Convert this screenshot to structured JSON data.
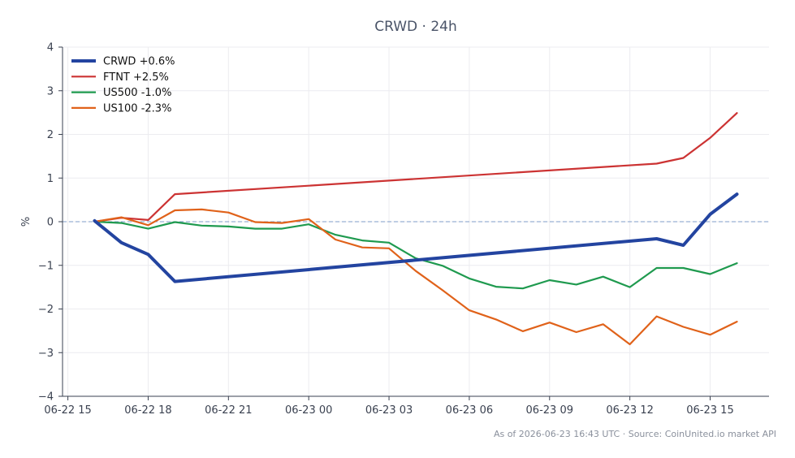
{
  "chart_data": {
    "type": "line",
    "title": "CRWD · 24h",
    "xlabel": "",
    "ylabel": "%",
    "ylim": [
      -4,
      4
    ],
    "y_ticks": [
      "4",
      "3",
      "2",
      "1",
      "0",
      "−1",
      "−2",
      "−3",
      "−4"
    ],
    "y_tick_values": [
      4,
      3,
      2,
      1,
      0,
      -1,
      -2,
      -3,
      -4
    ],
    "x_ticks": [
      "06-22 15",
      "06-22 18",
      "06-22 21",
      "06-23 00",
      "06-23 03",
      "06-23 06",
      "06-23 09",
      "06-23 12",
      "06-23 15"
    ],
    "x_tick_times": [
      "2026-06-22 15:00",
      "2026-06-22 18:00",
      "2026-06-22 21:00",
      "2026-06-23 00:00",
      "2026-06-23 03:00",
      "2026-06-23 06:00",
      "2026-06-23 09:00",
      "2026-06-23 12:00",
      "2026-06-23 15:00"
    ],
    "xlim": [
      "2026-06-22 14:48",
      "2026-06-23 17:12"
    ],
    "grid": true,
    "zero_reference_line": true,
    "legend_position": "top-left",
    "series": [
      {
        "name": "CRWD +0.6%",
        "color": "#2344a0",
        "emphasis": "thick",
        "points": [
          [
            "2026-06-22 16:00",
            0.02
          ],
          [
            "2026-06-22 17:00",
            -0.48
          ],
          [
            "2026-06-22 18:00",
            -0.75
          ],
          [
            "2026-06-22 19:00",
            -1.37
          ],
          [
            "2026-06-23 13:00",
            -0.39
          ],
          [
            "2026-06-23 14:00",
            -0.54
          ],
          [
            "2026-06-23 15:00",
            0.17
          ],
          [
            "2026-06-23 16:00",
            0.63
          ]
        ]
      },
      {
        "name": "FTNT +2.5%",
        "color": "#cc3333",
        "emphasis": "normal",
        "points": [
          [
            "2026-06-22 16:00",
            0.0
          ],
          [
            "2026-06-22 17:00",
            0.09
          ],
          [
            "2026-06-22 18:00",
            0.04
          ],
          [
            "2026-06-22 19:00",
            0.63
          ],
          [
            "2026-06-23 13:00",
            1.33
          ],
          [
            "2026-06-23 14:00",
            1.46
          ],
          [
            "2026-06-23 15:00",
            1.92
          ],
          [
            "2026-06-23 16:00",
            2.49
          ]
        ]
      },
      {
        "name": "US500 -1.0%",
        "color": "#1f9a4f",
        "emphasis": "normal",
        "points": [
          [
            "2026-06-22 16:00",
            0.0
          ],
          [
            "2026-06-22 17:00",
            -0.03
          ],
          [
            "2026-06-22 18:00",
            -0.16
          ],
          [
            "2026-06-22 19:00",
            -0.01
          ],
          [
            "2026-06-22 20:00",
            -0.09
          ],
          [
            "2026-06-22 21:00",
            -0.11
          ],
          [
            "2026-06-22 22:00",
            -0.16
          ],
          [
            "2026-06-22 23:00",
            -0.16
          ],
          [
            "2026-06-23 00:00",
            -0.06
          ],
          [
            "2026-06-23 01:00",
            -0.3
          ],
          [
            "2026-06-23 02:00",
            -0.43
          ],
          [
            "2026-06-23 03:00",
            -0.48
          ],
          [
            "2026-06-23 04:00",
            -0.84
          ],
          [
            "2026-06-23 05:00",
            -1.01
          ],
          [
            "2026-06-23 06:00",
            -1.3
          ],
          [
            "2026-06-23 07:00",
            -1.49
          ],
          [
            "2026-06-23 08:00",
            -1.53
          ],
          [
            "2026-06-23 09:00",
            -1.34
          ],
          [
            "2026-06-23 10:00",
            -1.44
          ],
          [
            "2026-06-23 11:00",
            -1.26
          ],
          [
            "2026-06-23 12:00",
            -1.5
          ],
          [
            "2026-06-23 13:00",
            -1.06
          ],
          [
            "2026-06-23 14:00",
            -1.06
          ],
          [
            "2026-06-23 15:00",
            -1.2
          ],
          [
            "2026-06-23 16:00",
            -0.95
          ]
        ]
      },
      {
        "name": "US100 -2.3%",
        "color": "#e0621a",
        "emphasis": "normal",
        "points": [
          [
            "2026-06-22 16:00",
            0.0
          ],
          [
            "2026-06-22 17:00",
            0.1
          ],
          [
            "2026-06-22 18:00",
            -0.08
          ],
          [
            "2026-06-22 19:00",
            0.26
          ],
          [
            "2026-06-22 20:00",
            0.28
          ],
          [
            "2026-06-22 21:00",
            0.21
          ],
          [
            "2026-06-22 22:00",
            -0.01
          ],
          [
            "2026-06-22 23:00",
            -0.03
          ],
          [
            "2026-06-23 00:00",
            0.06
          ],
          [
            "2026-06-23 01:00",
            -0.41
          ],
          [
            "2026-06-23 02:00",
            -0.59
          ],
          [
            "2026-06-23 03:00",
            -0.61
          ],
          [
            "2026-06-23 04:00",
            -1.13
          ],
          [
            "2026-06-23 05:00",
            -1.57
          ],
          [
            "2026-06-23 06:00",
            -2.03
          ],
          [
            "2026-06-23 07:00",
            -2.24
          ],
          [
            "2026-06-23 08:00",
            -2.51
          ],
          [
            "2026-06-23 09:00",
            -2.31
          ],
          [
            "2026-06-23 10:00",
            -2.53
          ],
          [
            "2026-06-23 11:00",
            -2.35
          ],
          [
            "2026-06-23 12:00",
            -2.81
          ],
          [
            "2026-06-23 13:00",
            -2.17
          ],
          [
            "2026-06-23 14:00",
            -2.41
          ],
          [
            "2026-06-23 15:00",
            -2.59
          ],
          [
            "2026-06-23 16:00",
            -2.29
          ]
        ]
      }
    ]
  },
  "colors": {
    "background": "#ffffff",
    "grid": "#ececf0",
    "axis": "#3a4150",
    "zero_line": "#7f9cc8"
  },
  "footer": {
    "note": "As of 2026-06-23 16:43 UTC · Source: CoinUnited.io market API"
  }
}
